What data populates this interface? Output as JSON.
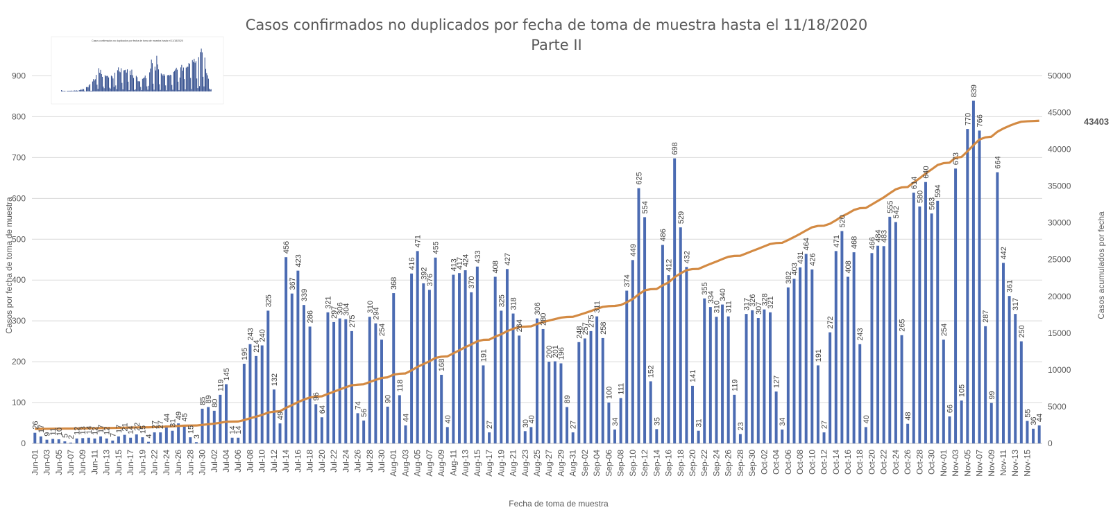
{
  "chart_data": {
    "type": "bar",
    "title": "Casos confirmados no duplicados por fecha de toma de muestra hasta el 11/18/2020",
    "subtitle": "Parte II",
    "xlabel": "Fecha de toma de muestra",
    "ylabel": "Casos por fecha de toma de muestra",
    "y2label": "Casos acumulados por fecha",
    "ylim": [
      0,
      950
    ],
    "y2lim": [
      0,
      52777
    ],
    "yticks": [
      0,
      100,
      200,
      300,
      400,
      500,
      600,
      700,
      800,
      900
    ],
    "y2ticks": [
      0,
      5000,
      10000,
      15000,
      20000,
      25000,
      30000,
      35000,
      40000,
      45000,
      50000
    ],
    "grid": true,
    "cumulative_final_label": "43403",
    "x_tick_labels": [
      "Jun-01",
      "Jun-03",
      "Jun-05",
      "Jun-07",
      "Jun-09",
      "Jun-11",
      "Jun-13",
      "Jun-15",
      "Jun-17",
      "Jun-19",
      "Jun-22",
      "Jun-24",
      "Jun-26",
      "Jun-28",
      "Jun-30",
      "Jul-02",
      "Jul-04",
      "Jul-06",
      "Jul-08",
      "Jul-10",
      "Jul-12",
      "Jul-14",
      "Jul-16",
      "Jul-18",
      "Jul-20",
      "Jul-22",
      "Jul-24",
      "Jul-26",
      "Jul-28",
      "Jul-30",
      "Aug-01",
      "Aug-03",
      "Aug-05",
      "Aug-07",
      "Aug-09",
      "Aug-11",
      "Aug-13",
      "Aug-15",
      "Aug-17",
      "Aug-19",
      "Aug-21",
      "Aug-23",
      "Aug-25",
      "Aug-27",
      "Aug-29",
      "Aug-31",
      "Sep-02",
      "Sep-04",
      "Sep-06",
      "Sep-08",
      "Sep-10",
      "Sep-12",
      "Sep-14",
      "Sep-16",
      "Sep-18",
      "Sep-20",
      "Sep-22",
      "Sep-24",
      "Sep-26",
      "Sep-28",
      "Sep-30",
      "Oct-02",
      "Oct-04",
      "Oct-06",
      "Oct-08",
      "Oct-10",
      "Oct-12",
      "Oct-14",
      "Oct-16",
      "Oct-18",
      "Oct-20",
      "Oct-22",
      "Oct-24",
      "Oct-26",
      "Oct-28",
      "Oct-30",
      "Nov-01",
      "Nov-03",
      "Nov-05",
      "Nov-07",
      "Nov-09",
      "Nov-11",
      "Nov-13",
      "Nov-15"
    ],
    "series": [
      {
        "values": [
          26,
          17,
          9,
          11,
          10,
          5,
          2,
          12,
          13,
          14,
          12,
          17,
          12,
          7,
          17,
          21,
          14,
          22,
          15,
          4,
          27,
          27,
          44,
          31,
          49,
          45,
          15,
          3,
          85,
          89,
          80,
          119,
          145,
          14,
          14,
          195,
          243,
          214,
          240,
          325,
          132,
          49,
          456,
          367,
          423,
          339,
          286,
          96,
          64,
          321,
          297,
          306,
          304,
          275,
          74,
          56,
          310,
          294,
          254,
          90,
          368,
          118,
          44,
          416,
          471,
          392,
          376,
          455,
          168,
          40,
          413,
          417,
          424,
          370,
          433,
          191,
          27,
          408,
          325,
          427,
          318,
          264,
          30,
          40,
          306,
          280,
          200,
          201,
          196,
          89,
          27,
          248,
          257,
          275,
          311,
          258,
          100,
          34,
          111,
          374,
          449,
          625,
          554,
          152,
          35,
          486,
          412,
          698,
          529,
          432,
          141,
          31,
          355,
          334,
          310,
          340,
          311,
          119,
          23,
          317,
          326,
          307,
          328,
          321,
          127,
          34,
          382,
          403,
          431,
          464,
          426,
          191,
          27,
          272,
          471,
          520,
          408,
          468,
          243,
          40,
          466,
          484,
          483,
          555,
          542,
          265,
          48,
          614,
          580,
          640,
          563,
          594,
          254,
          66,
          673,
          105,
          770,
          839,
          766,
          287,
          99,
          664,
          442,
          361,
          317,
          250,
          55,
          36,
          44
        ]
      }
    ]
  },
  "thumbnail": {
    "title": "Casos confirmados no duplicados por fecha de toma de muestra hasta el 11/18/2020"
  }
}
